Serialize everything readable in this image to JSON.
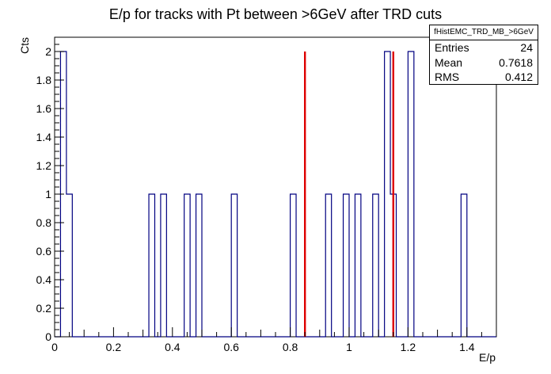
{
  "chart_data": {
    "type": "bar",
    "title": "E/p for tracks with Pt between >6GeV after TRD cuts",
    "xlabel": "E/p",
    "ylabel": "Cts",
    "xlim": [
      0,
      1.5
    ],
    "ylim": [
      0,
      2.1
    ],
    "bin_width": 0.02,
    "x_ticks": [
      "0",
      "0.2",
      "0.4",
      "0.6",
      "0.8",
      "1",
      "1.2",
      "1.4"
    ],
    "y_ticks": [
      "0",
      "0.2",
      "0.4",
      "0.6",
      "0.8",
      "1",
      "1.2",
      "1.4",
      "1.6",
      "1.8",
      "2"
    ],
    "bins": [
      {
        "x": 0.03,
        "value": 2
      },
      {
        "x": 0.05,
        "value": 1
      },
      {
        "x": 0.33,
        "value": 1
      },
      {
        "x": 0.36,
        "value": 1
      },
      {
        "x": 0.45,
        "value": 1
      },
      {
        "x": 0.48,
        "value": 1
      },
      {
        "x": 0.61,
        "value": 1
      },
      {
        "x": 0.81,
        "value": 1
      },
      {
        "x": 0.93,
        "value": 1
      },
      {
        "x": 0.99,
        "value": 1
      },
      {
        "x": 1.03,
        "value": 1
      },
      {
        "x": 1.08,
        "value": 1
      },
      {
        "x": 1.13,
        "value": 2
      },
      {
        "x": 1.15,
        "value": 1
      },
      {
        "x": 1.21,
        "value": 2
      },
      {
        "x": 1.39,
        "value": 1
      }
    ],
    "cut_lines": [
      {
        "x": 0.85,
        "y": 2
      },
      {
        "x": 1.15,
        "y": 2
      }
    ],
    "colors": {
      "histogram": "#000080",
      "cut_line": "#dd0000"
    },
    "grid": false,
    "legend": "none"
  },
  "stats": {
    "name": "fHistEMC_TRD_MB_>6GeV",
    "entries_label": "Entries",
    "entries_value": "24",
    "mean_label": "Mean",
    "mean_value": "0.7618",
    "rms_label": "RMS",
    "rms_value": "0.412"
  }
}
